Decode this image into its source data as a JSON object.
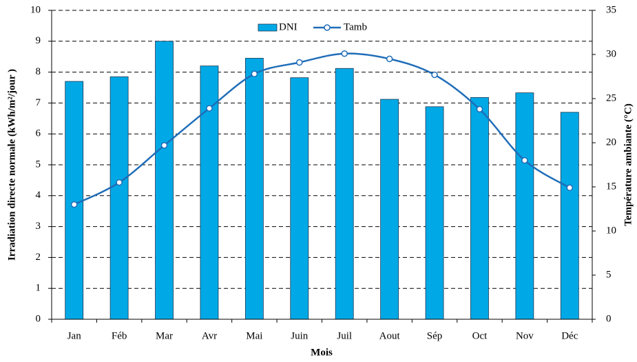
{
  "chart_data": {
    "type": "bar",
    "x_label": "Mois",
    "y_label": "Irradiation directe normale (kWh/m²/jour )",
    "y2_label": "Température ambiante (°C)",
    "categories": [
      "Jan",
      "Féb",
      "Mar",
      "Avr",
      "Mai",
      "Juin",
      "Juil",
      "Aout",
      "Sép",
      "Oct",
      "Nov",
      "Déc"
    ],
    "series": [
      {
        "name": "DNI",
        "type": "bar",
        "color": "#00a9e6",
        "values": [
          7.7,
          7.85,
          9.0,
          8.2,
          8.45,
          7.82,
          8.12,
          7.12,
          6.88,
          7.18,
          7.33,
          6.7
        ]
      },
      {
        "name": "Tamb",
        "type": "line",
        "axis": "y2",
        "color": "#1f6db8",
        "values": [
          13.0,
          15.5,
          19.7,
          23.9,
          27.8,
          29.1,
          30.1,
          29.5,
          27.7,
          23.8,
          18.0,
          14.9
        ]
      }
    ],
    "ylim": [
      0,
      10
    ],
    "yticks": [
      0,
      1,
      2,
      3,
      4,
      5,
      6,
      7,
      8,
      9,
      10
    ],
    "y2lim": [
      0,
      35
    ],
    "y2ticks": [
      0,
      5,
      10,
      15,
      20,
      25,
      30,
      35
    ],
    "grid": true,
    "legend": "top"
  }
}
